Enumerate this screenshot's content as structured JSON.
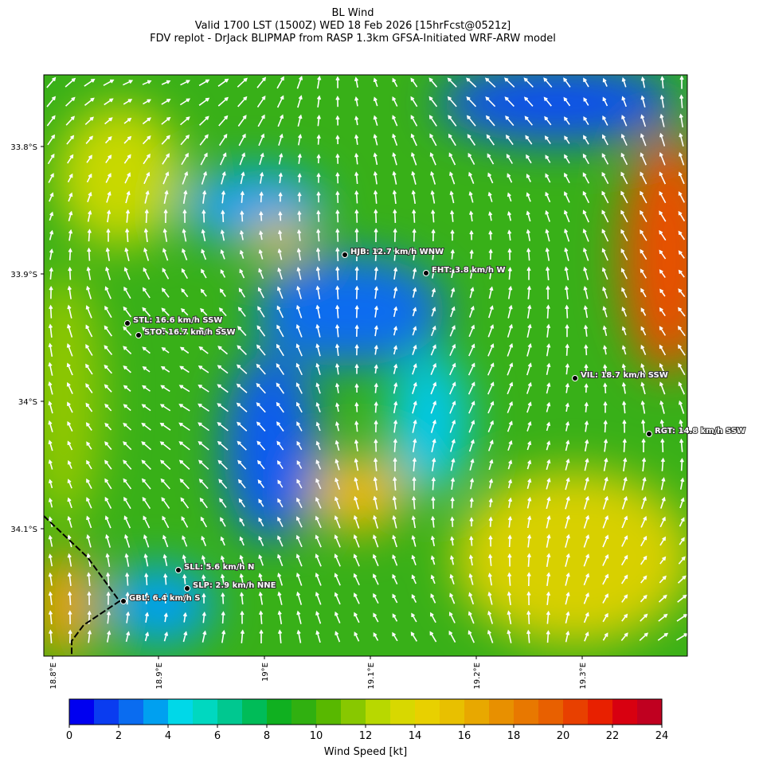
{
  "header": {
    "title": [
      "BL Wind",
      "Valid 1700 LST (1500Z) WED 18 Feb 2026 [15hrFcst@0521z]",
      "FDV replot - DrJack BLIPMAP from RASP 1.3km GFSA-Initiated WRF-ARW model"
    ]
  },
  "map": {
    "lat_labels": [
      "33.8°S",
      "33.9°S",
      "34°S",
      "34.1°S"
    ],
    "lon_labels": [
      "18.8°E",
      "18.9°E",
      "19°E",
      "19.1°E",
      "19.2°E",
      "19.3°E"
    ],
    "stations": [
      "HJB: 12.7 km/h WNW",
      "FHT: 3.8 km/h W",
      "STL: 16.6 km/h SSW",
      "STO: 16.7 km/h SSW",
      "VIL: 18.7 km/h SSW",
      "RGT: 14.8 km/h SSW",
      "SLL: 5.6 km/h N",
      "SLP: 2.9 km/h NNE",
      "GBL: 6.4 km/h S"
    ]
  },
  "colorbar": {
    "label": "Wind Speed [kt]",
    "lim": [
      0,
      24
    ],
    "ticks": [
      0,
      2,
      4,
      6,
      8,
      10,
      12,
      14,
      16,
      18,
      20,
      22,
      24
    ],
    "colors": [
      "#0000f0",
      "#0a3cf0",
      "#0a6cf0",
      "#00a0f0",
      "#00d8e8",
      "#00d8c0",
      "#00c890",
      "#00bc58",
      "#10b020",
      "#30b010",
      "#58b800",
      "#88c800",
      "#b8d800",
      "#d8d800",
      "#e8d000",
      "#e8c000",
      "#e8a800",
      "#e89000",
      "#e87800",
      "#e86000",
      "#e84000",
      "#e82000",
      "#d80010",
      "#c00020"
    ]
  }
}
